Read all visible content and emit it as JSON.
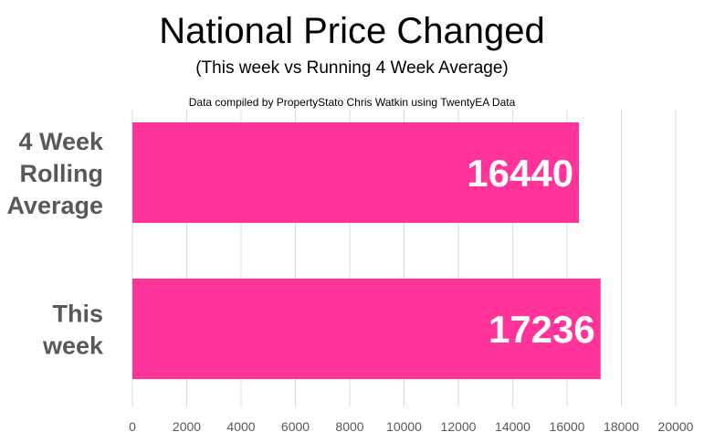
{
  "chart_data": {
    "type": "bar",
    "orientation": "horizontal",
    "title": "National Price Changed",
    "subtitle": "(This week vs Running 4 Week Average)",
    "note": "Data compiled by PropertyStato Chris Watkin using TwentyEA Data",
    "categories": [
      "4 Week Rolling Average",
      "This week"
    ],
    "category_lines": [
      [
        "4 Week",
        "Rolling",
        "Average"
      ],
      [
        "This",
        "week"
      ]
    ],
    "values": [
      16440,
      17236
    ],
    "data_labels": [
      "16440",
      "17236"
    ],
    "xlim": [
      0,
      20000
    ],
    "x_ticks": [
      0,
      2000,
      4000,
      6000,
      8000,
      10000,
      12000,
      14000,
      16000,
      18000,
      20000
    ],
    "grid": true,
    "legend": "none",
    "bar_color": "#ff3399",
    "gridline_color": "#d9d9d9",
    "text_color": "#595959"
  }
}
